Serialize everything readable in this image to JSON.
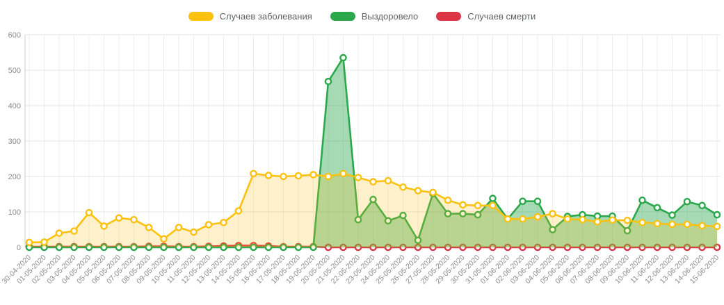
{
  "chart_data": {
    "type": "line",
    "title": "",
    "xlabel": "",
    "ylabel": "",
    "ylim": [
      0,
      600
    ],
    "y_ticks": [
      0,
      100,
      200,
      300,
      400,
      500,
      600
    ],
    "grid": true,
    "legend_position": "top",
    "categories": [
      "30-04-2020",
      "01-05-2020",
      "02-05-2020",
      "03-05-2020",
      "04-05-2020",
      "05-05-2020",
      "06-05-2020",
      "07-05-2020",
      "08-05-2020",
      "09-05-2020",
      "10-05-2020",
      "11-05-2020",
      "12-05-2020",
      "13-05-2020",
      "14-05-2020",
      "15-05-2020",
      "16-05-2020",
      "17-05-2020",
      "18-05-2020",
      "19-05-2020",
      "20-05-2020",
      "21-05-2020",
      "22-05-2020",
      "23-05-2020",
      "24-05-2020",
      "25-05-2020",
      "26-05-2020",
      "27-05-2020",
      "28-05-2020",
      "29-05-2020",
      "30-05-2020",
      "31-05-2020",
      "01-06-2020",
      "02-06-2020",
      "03-06-2020",
      "04-06-2020",
      "05-06-2020",
      "06-06-2020",
      "07-06-2020",
      "08-06-2020",
      "09-06-2020",
      "10-06-2020",
      "11-06-2020",
      "12-06-2020",
      "13-06-2020",
      "14-06-2020",
      "15-06-2020"
    ],
    "series": [
      {
        "name": "Случаев заболевания",
        "color": "#fdc110",
        "fill": "rgba(253,193,16,0.22)",
        "values": [
          14,
          15,
          40,
          46,
          98,
          60,
          83,
          78,
          56,
          24,
          56,
          43,
          64,
          70,
          103,
          208,
          203,
          200,
          202,
          205,
          200,
          208,
          197,
          185,
          188,
          170,
          160,
          155,
          133,
          120,
          118,
          118,
          80,
          80,
          86,
          95,
          80,
          78,
          72,
          77,
          76,
          70,
          67,
          65,
          65,
          61,
          59
        ]
      },
      {
        "name": "Выздоровело",
        "color": "#2ba84c",
        "fill": "rgba(43,168,76,0.42)",
        "values": [
          0,
          0,
          0,
          0,
          0,
          0,
          0,
          0,
          0,
          0,
          0,
          0,
          0,
          0,
          0,
          0,
          0,
          0,
          0,
          0,
          468,
          535,
          78,
          135,
          75,
          90,
          20,
          152,
          95,
          95,
          92,
          138,
          80,
          130,
          130,
          50,
          87,
          92,
          88,
          88,
          47,
          133,
          112,
          91,
          129,
          118,
          92
        ]
      },
      {
        "name": "Случаев смерти",
        "color": "#dc3545",
        "fill": "none",
        "values": [
          2,
          2,
          2,
          2,
          2,
          2,
          2,
          2,
          3,
          3,
          2,
          2,
          3,
          4,
          5,
          5,
          4,
          2,
          2,
          2,
          0,
          0,
          0,
          0,
          0,
          0,
          0,
          0,
          0,
          0,
          0,
          0,
          0,
          0,
          0,
          0,
          0,
          0,
          0,
          0,
          0,
          0,
          0,
          0,
          0,
          0,
          0
        ]
      }
    ]
  }
}
